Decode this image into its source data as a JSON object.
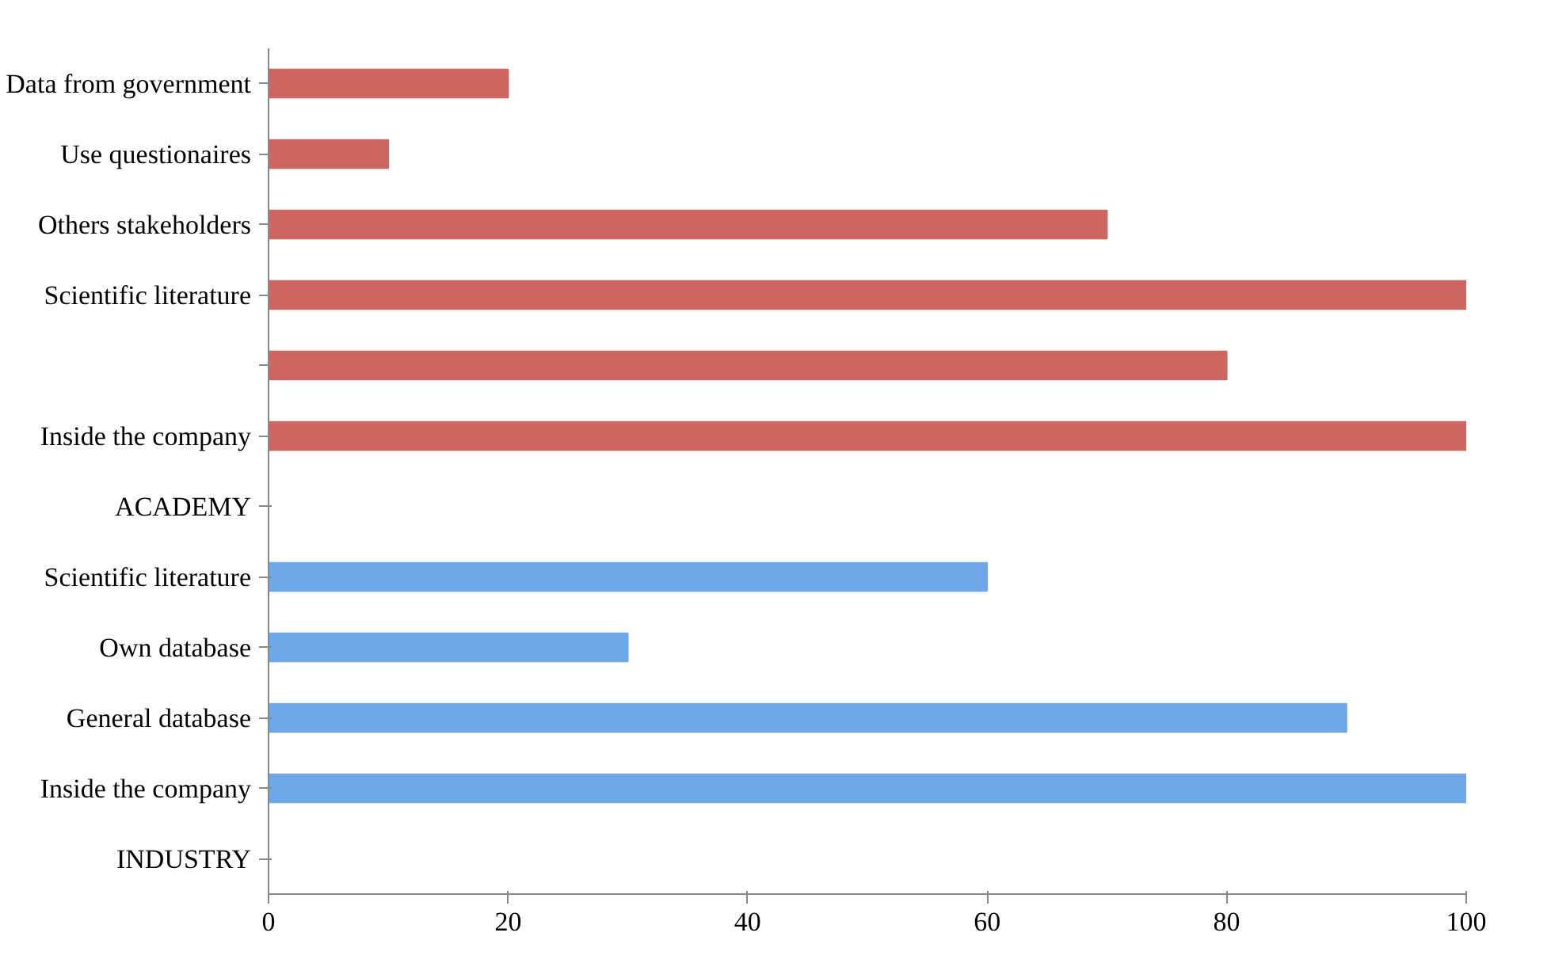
{
  "chart_data": {
    "type": "bar",
    "orientation": "horizontal",
    "categories": [
      "Data from government",
      "Use questionaires",
      "Others stakeholders",
      "Scientific literature",
      null,
      "Inside the company",
      "ACADEMY",
      "Scientific literature",
      "Own database",
      "General database",
      "Inside the company",
      "INDUSTRY"
    ],
    "values": [
      20,
      10,
      70,
      100,
      80,
      100,
      null,
      60,
      30,
      90,
      100,
      null
    ],
    "colors": [
      "#cd6660",
      "#cd6660",
      "#cd6660",
      "#cd6660",
      "#cd6660",
      "#cd6660",
      "#cd6660",
      "#6fa8e8",
      "#6fa8e8",
      "#6fa8e8",
      "#6fa8e8",
      "#6fa8e8"
    ],
    "xlim": [
      0,
      100
    ],
    "xticks": [
      0,
      20,
      40,
      60,
      80,
      100
    ],
    "grid": false
  }
}
